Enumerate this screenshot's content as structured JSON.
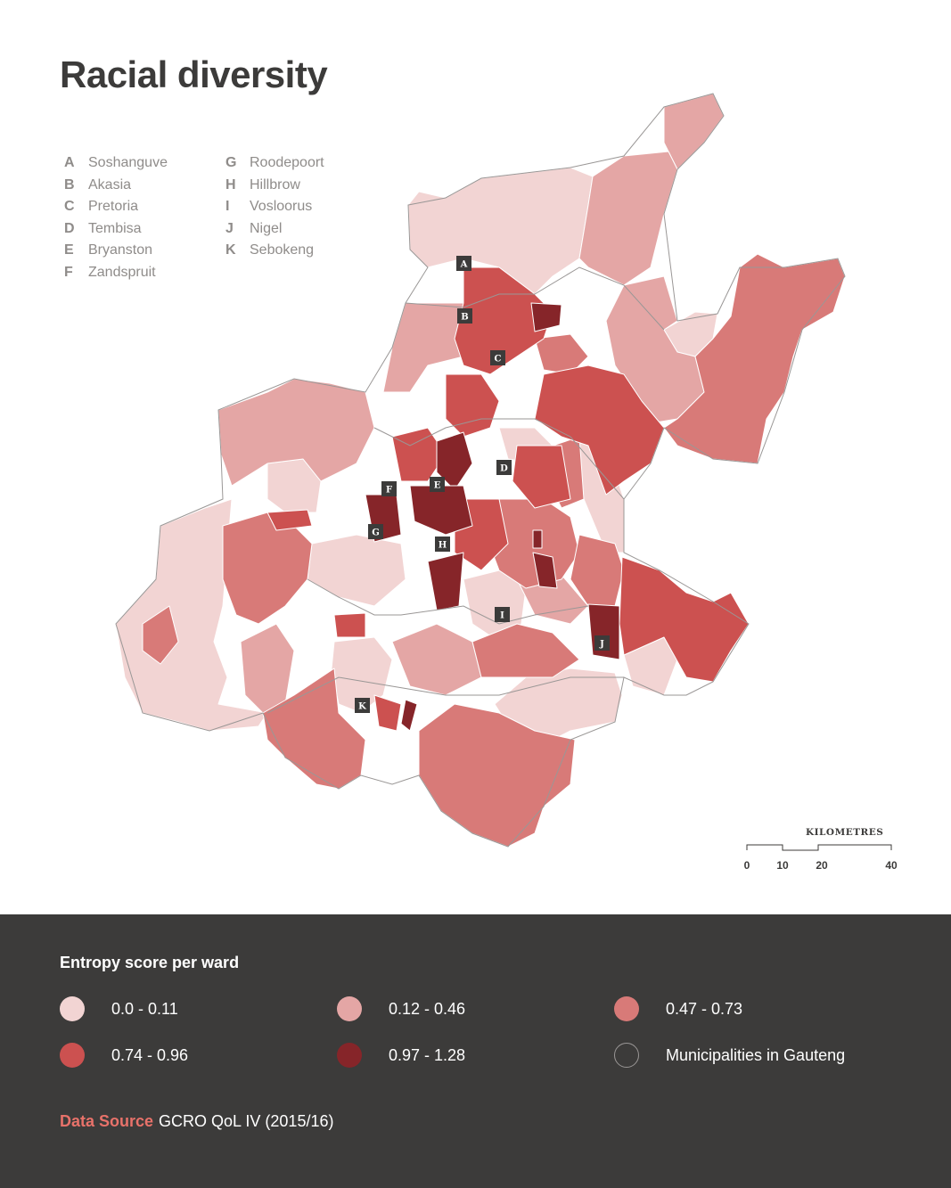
{
  "title": "Racial diversity",
  "places": [
    {
      "letter": "A",
      "name": "Soshanguve"
    },
    {
      "letter": "B",
      "name": "Akasia"
    },
    {
      "letter": "C",
      "name": "Pretoria"
    },
    {
      "letter": "D",
      "name": "Tembisa"
    },
    {
      "letter": "E",
      "name": "Bryanston"
    },
    {
      "letter": "F",
      "name": "Zandspruit"
    },
    {
      "letter": "G",
      "name": "Roodepoort"
    },
    {
      "letter": "H",
      "name": "Hillbrow"
    },
    {
      "letter": "I",
      "name": "Vosloorus"
    },
    {
      "letter": "J",
      "name": "Nigel"
    },
    {
      "letter": "K",
      "name": "Sebokeng"
    }
  ],
  "scale_bar": {
    "title": "KILOMETRES",
    "ticks": [
      "0",
      "10",
      "20",
      "40"
    ]
  },
  "legend": {
    "title": "Entropy score per ward",
    "items": [
      {
        "label": "0.0 - 0.11",
        "color": "#f2d4d3"
      },
      {
        "label": "0.12 - 0.46",
        "color": "#e4a6a5"
      },
      {
        "label": "0.47 - 0.73",
        "color": "#d87a78"
      },
      {
        "label": "0.74 - 0.96",
        "color": "#cc5150"
      },
      {
        "label": "0.97 - 1.28",
        "color": "#862529"
      },
      {
        "label": "Municipalities in Gauteng",
        "color": "outline"
      }
    ]
  },
  "source": {
    "label": "Data Source",
    "value": "GCRO QoL IV (2015/16)"
  },
  "colors": {
    "background": "#ffffff",
    "footer": "#3c3b3a",
    "title": "#3c3b3a",
    "accent": "#e8726a",
    "boundary": "#9a9796"
  }
}
